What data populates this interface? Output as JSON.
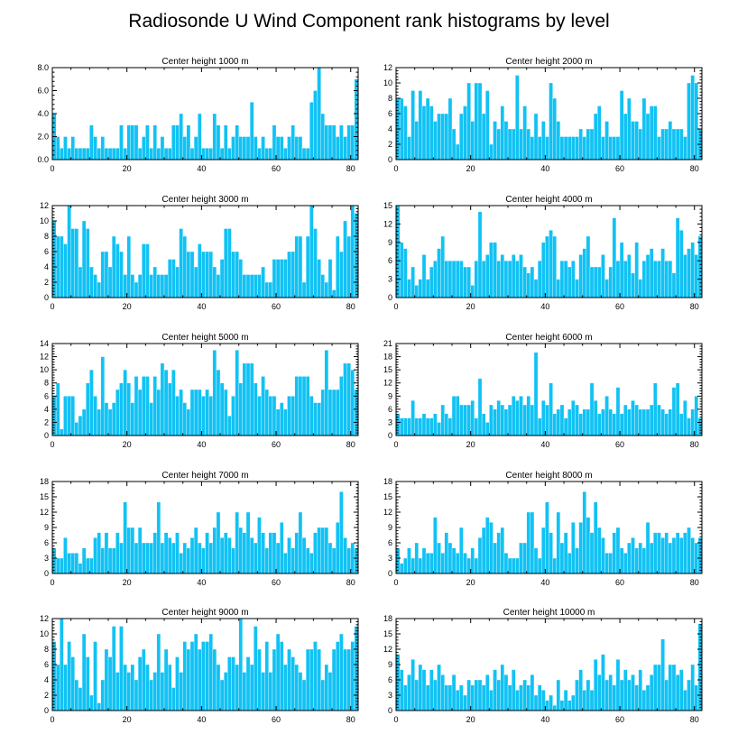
{
  "colors": {
    "bar": "#11c2f4",
    "bar_edge": "#ffffff",
    "axis": "#000000"
  },
  "chart_data": {
    "type": "bar",
    "title": "Radiosonde U Wind Component rank histograms by level",
    "x_ticks": [
      0,
      20,
      40,
      60,
      80
    ],
    "xlim": [
      0,
      82
    ],
    "panels": [
      {
        "title": "Center height 1000 m",
        "ylim": [
          0,
          8
        ],
        "y_ticks": [
          0,
          2,
          4,
          6,
          8
        ],
        "y_tick_labels": [
          "0.0",
          "2.0",
          "4.0",
          "6.0",
          "8.0"
        ],
        "values": [
          4,
          2,
          1,
          2,
          1,
          2,
          1,
          1,
          1,
          1,
          3,
          2,
          1,
          2,
          1,
          1,
          1,
          1,
          3,
          1,
          3,
          3,
          3,
          1,
          2,
          3,
          1,
          3,
          1,
          2,
          1,
          1,
          3,
          3,
          4,
          2,
          3,
          1,
          2,
          4,
          1,
          1,
          1,
          4,
          3,
          1,
          3,
          1,
          2,
          3,
          2,
          2,
          2,
          5,
          2,
          1,
          2,
          1,
          1,
          3,
          2,
          2,
          1,
          2,
          3,
          2,
          2,
          1,
          1,
          5,
          6,
          8,
          4,
          3,
          3,
          3,
          2,
          3,
          2,
          3,
          3,
          7
        ]
      },
      {
        "title": "Center height 2000 m",
        "ylim": [
          0,
          12
        ],
        "y_ticks": [
          0,
          2,
          4,
          6,
          8,
          10,
          12
        ],
        "y_tick_labels": [
          "0",
          "2",
          "4",
          "6",
          "8",
          "10",
          "12"
        ],
        "values": [
          8,
          8,
          7,
          3,
          9,
          5,
          9,
          7,
          8,
          7,
          5,
          6,
          6,
          6,
          8,
          4,
          2,
          6,
          7,
          10,
          5,
          10,
          10,
          6,
          9,
          2,
          5,
          4,
          7,
          5,
          4,
          4,
          11,
          4,
          7,
          4,
          3,
          6,
          3,
          5,
          3,
          10,
          8,
          5,
          3,
          3,
          3,
          3,
          3,
          4,
          3,
          4,
          4,
          6,
          7,
          3,
          5,
          3,
          3,
          3,
          9,
          6,
          8,
          5,
          5,
          4,
          8,
          6,
          7,
          7,
          3,
          4,
          4,
          5,
          4,
          4,
          4,
          3,
          10,
          11,
          10,
          4
        ]
      },
      {
        "title": "Center height 3000 m",
        "ylim": [
          0,
          12
        ],
        "y_ticks": [
          0,
          2,
          4,
          6,
          8,
          10,
          12
        ],
        "y_tick_labels": [
          "0",
          "2",
          "4",
          "6",
          "8",
          "10",
          "12"
        ],
        "values": [
          10,
          8,
          8,
          7,
          12,
          9,
          9,
          4,
          10,
          9,
          4,
          3,
          2,
          6,
          6,
          4,
          8,
          7,
          6,
          3,
          8,
          3,
          2,
          3,
          7,
          7,
          3,
          4,
          3,
          3,
          3,
          5,
          5,
          4,
          9,
          8,
          6,
          6,
          4,
          7,
          6,
          6,
          6,
          4,
          3,
          5,
          9,
          9,
          6,
          6,
          5,
          3,
          3,
          3,
          3,
          3,
          4,
          2,
          2,
          5,
          5,
          5,
          5,
          6,
          6,
          8,
          8,
          2,
          8,
          12,
          9,
          5,
          3,
          2,
          5,
          1,
          8,
          6,
          10,
          8,
          12,
          11
        ]
      },
      {
        "title": "Center height 4000 m",
        "ylim": [
          0,
          15
        ],
        "y_ticks": [
          0,
          3,
          6,
          9,
          12,
          15
        ],
        "y_tick_labels": [
          "0",
          "3",
          "6",
          "9",
          "12",
          "15"
        ],
        "values": [
          15,
          9,
          8,
          3,
          5,
          2,
          3,
          7,
          3,
          5,
          6,
          8,
          10,
          6,
          6,
          6,
          6,
          6,
          5,
          5,
          2,
          6,
          14,
          6,
          7,
          9,
          9,
          6,
          7,
          6,
          6,
          7,
          6,
          7,
          5,
          4,
          5,
          3,
          6,
          9,
          10,
          11,
          10,
          3,
          6,
          6,
          5,
          6,
          3,
          7,
          8,
          10,
          5,
          5,
          5,
          7,
          3,
          5,
          13,
          6,
          9,
          6,
          7,
          4,
          9,
          3,
          6,
          7,
          8,
          6,
          6,
          8,
          6,
          6,
          4,
          13,
          11,
          7,
          8,
          9,
          7,
          10
        ]
      },
      {
        "title": "Center height 5000 m",
        "ylim": [
          0,
          14
        ],
        "y_ticks": [
          0,
          2,
          4,
          6,
          8,
          10,
          12,
          14
        ],
        "y_tick_labels": [
          "0",
          "2",
          "4",
          "6",
          "8",
          "10",
          "12",
          "14"
        ],
        "values": [
          6,
          8,
          1,
          6,
          6,
          6,
          2,
          3,
          4,
          8,
          10,
          6,
          4,
          12,
          5,
          4,
          5,
          7,
          8,
          10,
          8,
          5,
          9,
          7,
          9,
          9,
          5,
          9,
          7,
          11,
          10,
          8,
          10,
          6,
          7,
          5,
          4,
          7,
          7,
          7,
          6,
          7,
          6,
          13,
          10,
          8,
          7,
          3,
          6,
          13,
          8,
          11,
          11,
          11,
          8,
          6,
          9,
          7,
          6,
          6,
          4,
          5,
          4,
          6,
          6,
          9,
          9,
          9,
          9,
          6,
          5,
          5,
          7,
          13,
          7,
          7,
          7,
          9,
          11,
          11,
          10,
          7
        ]
      },
      {
        "title": "Center height 6000 m",
        "ylim": [
          0,
          21
        ],
        "y_ticks": [
          0,
          3,
          6,
          9,
          12,
          15,
          18,
          21
        ],
        "y_tick_labels": [
          "0",
          "3",
          "6",
          "9",
          "12",
          "15",
          "18",
          "21"
        ],
        "values": [
          5,
          4,
          4,
          4,
          8,
          4,
          4,
          5,
          4,
          4,
          5,
          3,
          7,
          5,
          4,
          9,
          9,
          7,
          7,
          7,
          8,
          4,
          13,
          5,
          3,
          7,
          6,
          8,
          7,
          6,
          7,
          9,
          8,
          9,
          7,
          9,
          7,
          19,
          4,
          8,
          7,
          12,
          5,
          6,
          7,
          4,
          6,
          8,
          7,
          5,
          6,
          6,
          12,
          8,
          5,
          6,
          9,
          6,
          5,
          11,
          5,
          7,
          6,
          8,
          7,
          6,
          6,
          6,
          7,
          12,
          7,
          6,
          5,
          6,
          11,
          12,
          5,
          8,
          4,
          6,
          9,
          4
        ]
      },
      {
        "title": "Center height 7000 m",
        "ylim": [
          0,
          18
        ],
        "y_ticks": [
          0,
          3,
          6,
          9,
          12,
          15,
          18
        ],
        "y_tick_labels": [
          "0",
          "3",
          "6",
          "9",
          "12",
          "15",
          "18"
        ],
        "values": [
          5,
          3,
          3,
          7,
          4,
          4,
          4,
          2,
          5,
          3,
          3,
          7,
          8,
          5,
          8,
          5,
          5,
          8,
          6,
          14,
          9,
          9,
          6,
          9,
          6,
          6,
          6,
          8,
          14,
          6,
          8,
          7,
          6,
          8,
          4,
          6,
          5,
          7,
          9,
          6,
          5,
          8,
          6,
          9,
          12,
          7,
          8,
          7,
          5,
          12,
          9,
          8,
          12,
          7,
          6,
          11,
          8,
          5,
          8,
          8,
          6,
          10,
          4,
          7,
          5,
          8,
          12,
          7,
          5,
          4,
          8,
          9,
          9,
          9,
          6,
          5,
          10,
          16,
          7,
          5,
          6,
          5
        ]
      },
      {
        "title": "Center height 8000 m",
        "ylim": [
          0,
          18
        ],
        "y_ticks": [
          0,
          3,
          6,
          9,
          12,
          15,
          18
        ],
        "y_tick_labels": [
          "0",
          "3",
          "6",
          "9",
          "12",
          "15",
          "18"
        ],
        "values": [
          5,
          2,
          3,
          5,
          3,
          6,
          3,
          5,
          4,
          4,
          11,
          6,
          4,
          8,
          6,
          5,
          4,
          9,
          4,
          3,
          5,
          3,
          7,
          9,
          11,
          10,
          6,
          8,
          9,
          4,
          3,
          3,
          3,
          6,
          6,
          12,
          12,
          5,
          3,
          9,
          14,
          8,
          3,
          12,
          6,
          8,
          4,
          10,
          5,
          10,
          16,
          11,
          8,
          14,
          9,
          7,
          4,
          4,
          8,
          9,
          5,
          4,
          6,
          7,
          5,
          6,
          5,
          10,
          6,
          8,
          8,
          7,
          8,
          6,
          7,
          8,
          7,
          8,
          9,
          7,
          6,
          7
        ]
      },
      {
        "title": "Center height 9000 m",
        "ylim": [
          0,
          12
        ],
        "y_ticks": [
          0,
          2,
          4,
          6,
          8,
          10,
          12
        ],
        "y_tick_labels": [
          "0",
          "2",
          "4",
          "6",
          "8",
          "10",
          "12"
        ],
        "values": [
          9,
          6,
          12,
          6,
          9,
          7,
          4,
          3,
          10,
          7,
          2,
          9,
          1,
          4,
          8,
          7,
          11,
          5,
          11,
          6,
          5,
          6,
          4,
          7,
          8,
          6,
          4,
          5,
          10,
          5,
          8,
          6,
          3,
          7,
          5,
          9,
          8,
          9,
          10,
          8,
          9,
          9,
          10,
          8,
          6,
          4,
          5,
          7,
          7,
          6,
          12,
          5,
          7,
          6,
          11,
          8,
          5,
          9,
          5,
          8,
          10,
          9,
          6,
          8,
          7,
          6,
          5,
          4,
          8,
          8,
          9,
          8,
          4,
          6,
          5,
          8,
          9,
          10,
          8,
          8,
          9,
          11
        ]
      },
      {
        "title": "Center height 10000 m",
        "ylim": [
          0,
          18
        ],
        "y_ticks": [
          0,
          3,
          6,
          9,
          12,
          15,
          18
        ],
        "y_tick_labels": [
          "0",
          "3",
          "6",
          "9",
          "12",
          "15",
          "18"
        ],
        "values": [
          11,
          8,
          5,
          7,
          10,
          6,
          9,
          8,
          5,
          8,
          6,
          9,
          7,
          5,
          5,
          7,
          4,
          5,
          3,
          6,
          5,
          6,
          6,
          5,
          7,
          4,
          8,
          6,
          9,
          7,
          5,
          8,
          4,
          5,
          6,
          5,
          7,
          3,
          5,
          4,
          2,
          3,
          1,
          6,
          2,
          4,
          2,
          3,
          6,
          8,
          4,
          6,
          4,
          10,
          7,
          11,
          6,
          7,
          5,
          10,
          6,
          8,
          6,
          7,
          5,
          8,
          4,
          5,
          7,
          9,
          9,
          14,
          6,
          9,
          9,
          7,
          8,
          4,
          6,
          9,
          5,
          17
        ]
      }
    ]
  }
}
